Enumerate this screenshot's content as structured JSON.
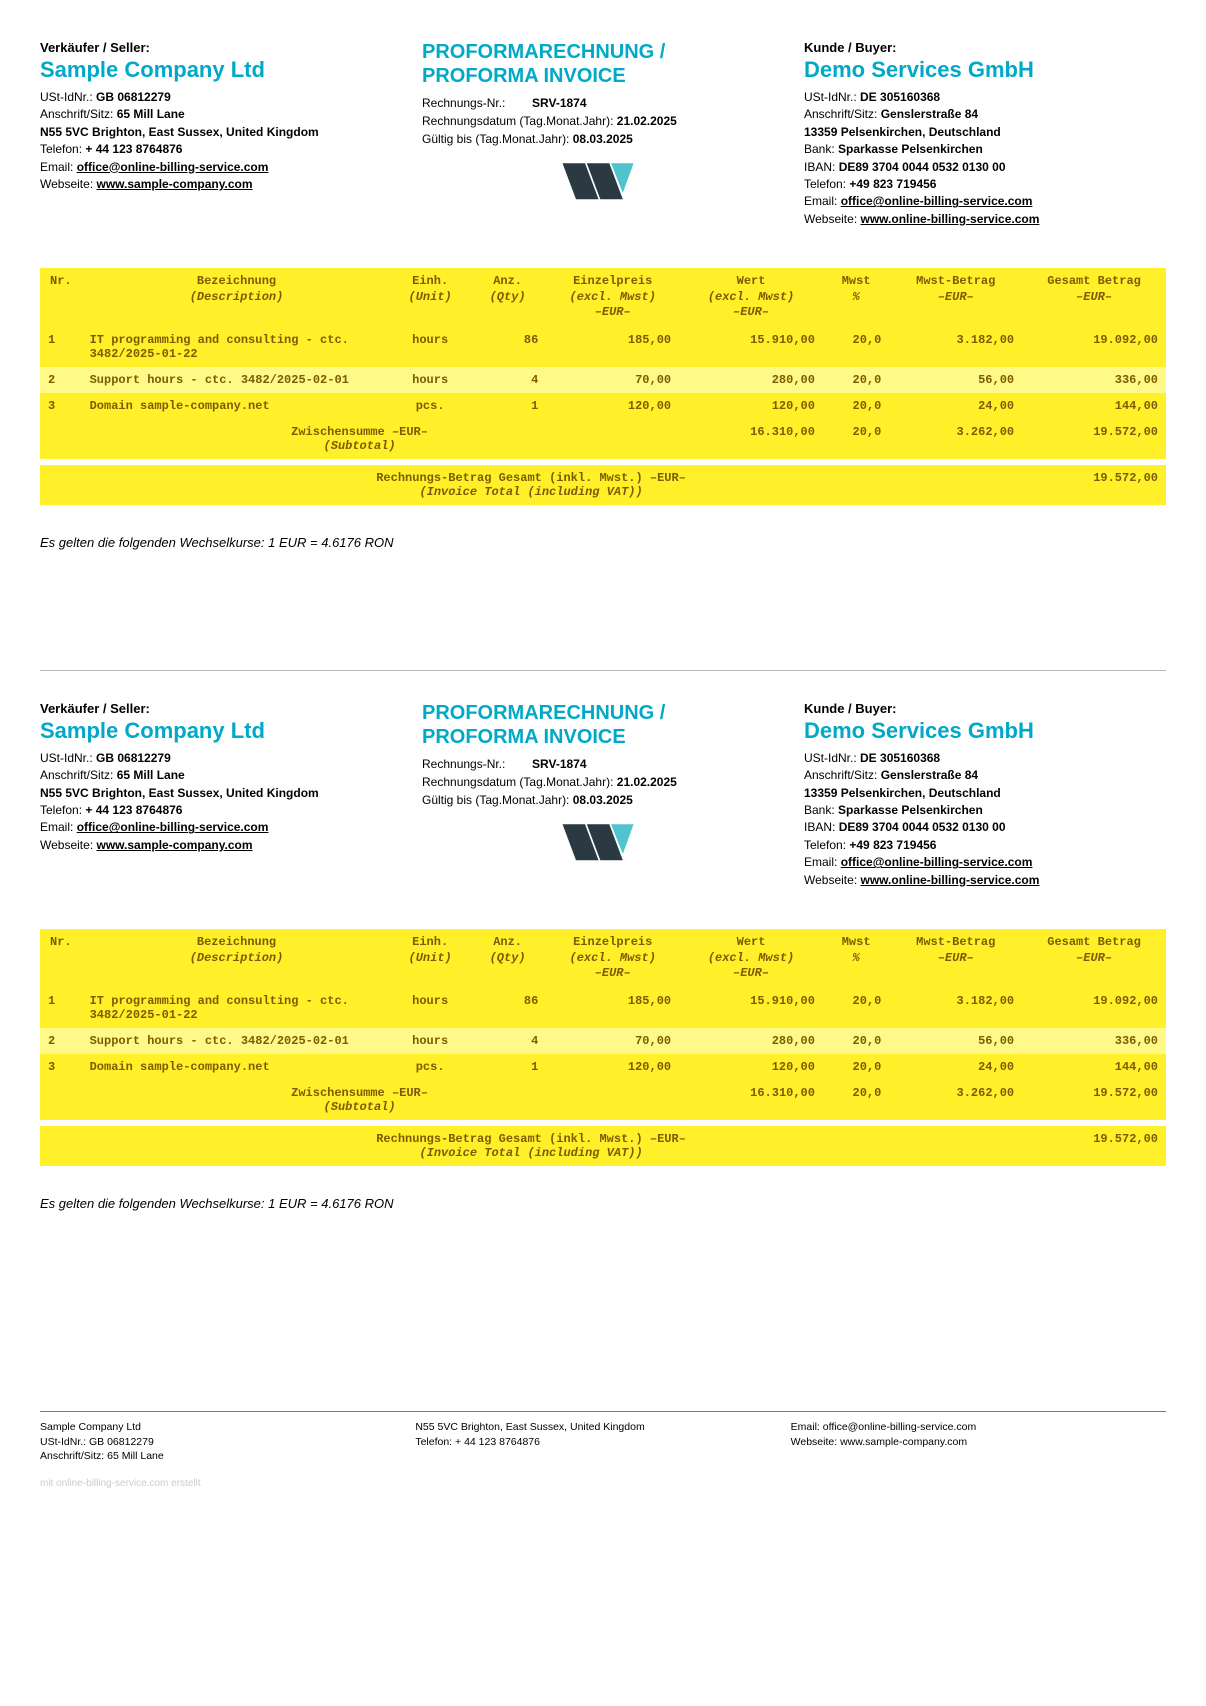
{
  "labels": {
    "seller": "Verkäufer / Seller:",
    "buyer": "Kunde / Buyer:",
    "ust": "USt-IdNr.",
    "anschrift": "Anschrift/Sitz",
    "telefon": "Telefon",
    "email": "Email",
    "webseite": "Webseite",
    "bank": "Bank",
    "iban": "IBAN",
    "invoice_nr": "Rechnungs-Nr.:",
    "invoice_date": "Rechnungsdatum (Tag.Monat.Jahr):",
    "valid_until": "Gültig bis (Tag.Monat.Jahr):"
  },
  "doc_title_line1": "PROFORMARECHNUNG /",
  "doc_title_line2": "PROFORMA INVOICE",
  "seller": {
    "name": "Sample Company Ltd",
    "ust": "GB 06812279",
    "addr1": "65 Mill Lane",
    "addr2": "N55 5VC Brighton, East Sussex, United Kingdom",
    "phone": "+ 44 123 8764876",
    "email": "office@online-billing-service.com",
    "web": "www.sample-company.com"
  },
  "buyer": {
    "name": "Demo Services GmbH",
    "ust": "DE 305160368",
    "addr1": "Genslerstraße 84",
    "addr2": "13359 Pelsenkirchen, Deutschland",
    "bank": "Sparkasse Pelsenkirchen",
    "iban": "DE89 3704 0044 0532 0130 00",
    "phone": "+49 823 719456",
    "email": "office@online-billing-service.com",
    "web": "www.online-billing-service.com"
  },
  "meta": {
    "nr": "SRV-1874",
    "date": "21.02.2025",
    "valid": "08.03.2025"
  },
  "table": {
    "headers": {
      "nr": "Nr.",
      "desc": "Bezeichnung",
      "desc_sub": "(Description)",
      "unit": "Einh.",
      "unit_sub": "(Unit)",
      "qty": "Anz.",
      "qty_sub": "(Qty)",
      "price": "Einzelpreis",
      "price_sub": "(excl. Mwst)",
      "price_cur": "–EUR–",
      "value": "Wert",
      "value_sub": "(excl. Mwst)",
      "value_cur": "–EUR–",
      "vat": "Mwst",
      "vat_sub": "%",
      "vat_amt": "Mwst-Betrag",
      "vat_amt_cur": "–EUR–",
      "total": "Gesamt Betrag",
      "total_cur": "–EUR–"
    },
    "rows": [
      {
        "nr": "1",
        "desc": "IT programming and consulting - ctc. 3482/2025-01-22",
        "unit": "hours",
        "qty": "86",
        "price": "185,00",
        "value": "15.910,00",
        "vat": "20,0",
        "vat_amt": "3.182,00",
        "total": "19.092,00"
      },
      {
        "nr": "2",
        "desc": "Support hours - ctc. 3482/2025-02-01",
        "unit": "hours",
        "qty": "4",
        "price": "70,00",
        "value": "280,00",
        "vat": "20,0",
        "vat_amt": "56,00",
        "total": "336,00"
      },
      {
        "nr": "3",
        "desc": "Domain sample-company.net",
        "unit": "pcs.",
        "qty": "1",
        "price": "120,00",
        "value": "120,00",
        "vat": "20,0",
        "vat_amt": "24,00",
        "total": "144,00"
      }
    ],
    "subtotal": {
      "label": "Zwischensumme –EUR–",
      "label_sub": "(Subtotal)",
      "value": "16.310,00",
      "vat": "20,0",
      "vat_amt": "3.262,00",
      "total": "19.572,00"
    },
    "grandtotal": {
      "label": "Rechnungs-Betrag Gesamt (inkl. Mwst.) –EUR–",
      "label_sub": "(Invoice Total (including VAT))",
      "total": "19.572,00"
    }
  },
  "exchange_rate": "Es gelten die folgenden Wechselkurse: 1 EUR = 4.6176 RON",
  "footer": {
    "c1l1": "Sample Company Ltd",
    "c1l2": "USt-IdNr.: GB 06812279",
    "c1l3": "Anschrift/Sitz: 65 Mill Lane",
    "c2l1": "N55 5VC Brighton, East Sussex, United Kingdom",
    "c2l2": "Telefon: + 44 123 8764876",
    "c3l1": "Email: office@online-billing-service.com",
    "c3l2": "Webseite: www.sample-company.com"
  },
  "credit": "mit online-billing-service.com erstellt",
  "colors": {
    "accent": "#00a9c7",
    "yellow_dark": "#fff02a",
    "yellow_light": "#fff987",
    "text_on_yellow": "#7b5c00"
  }
}
